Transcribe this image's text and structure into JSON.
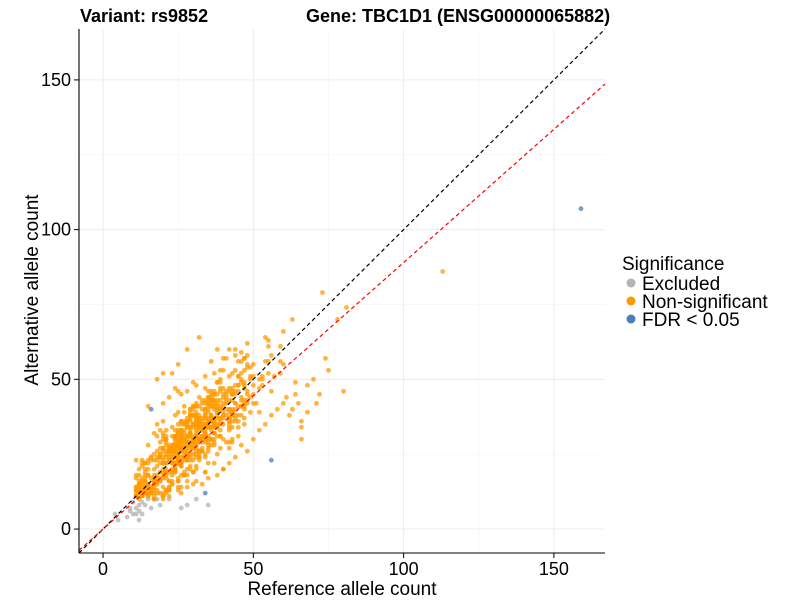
{
  "titles": {
    "variant": "Variant: rs9852",
    "gene": "Gene: TBC1D1 (ENSG00000065882)"
  },
  "legend": {
    "title": "Significance",
    "items": [
      {
        "label": "Excluded",
        "color": "#b3b3b3"
      },
      {
        "label": "Non-significant",
        "color": "#ff9900"
      },
      {
        "label": "FDR < 0.05",
        "color": "#4a7fb5"
      }
    ]
  },
  "colors": {
    "excluded": "#b3b3b3",
    "non_significant": "#ff9900",
    "significant": "#4a7fb5",
    "identity_line": "#000000",
    "fit_line": "#ff0000"
  },
  "chart_data": {
    "type": "scatter",
    "xlabel": "Reference allele count",
    "ylabel": "Alternative allele count",
    "xlim": [
      -8,
      167
    ],
    "ylim": [
      -8,
      167
    ],
    "x_ticks": [
      0,
      50,
      100,
      150
    ],
    "y_ticks": [
      0,
      50,
      100,
      150
    ],
    "grid": true,
    "legend_position": "right",
    "reference_lines": [
      {
        "name": "identity",
        "slope": 1.0,
        "intercept": 0,
        "color": "#000000",
        "dash": true
      },
      {
        "name": "fit",
        "slope": 0.89,
        "intercept": 0,
        "color": "#ff0000",
        "dash": true
      }
    ],
    "series": [
      {
        "name": "Excluded",
        "color": "#b3b3b3",
        "points": [
          [
            4,
            5
          ],
          [
            5,
            3
          ],
          [
            8,
            4
          ],
          [
            9,
            6
          ],
          [
            10,
            5
          ],
          [
            11,
            7
          ],
          [
            11,
            5
          ],
          [
            12,
            6
          ],
          [
            12,
            8
          ],
          [
            13,
            5
          ],
          [
            12,
            3
          ],
          [
            13,
            9
          ],
          [
            14,
            8
          ],
          [
            15,
            10
          ],
          [
            16,
            7
          ],
          [
            17,
            10
          ],
          [
            18,
            10
          ],
          [
            19,
            8
          ],
          [
            22,
            10
          ],
          [
            26,
            7
          ],
          [
            28,
            8
          ],
          [
            31,
            10
          ],
          [
            35,
            8
          ],
          [
            10,
            9
          ],
          [
            9,
            7
          ]
        ]
      },
      {
        "name": "FDR < 0.05",
        "color": "#4a7fb5",
        "points": [
          [
            16,
            40
          ],
          [
            34,
            12
          ],
          [
            56,
            23
          ],
          [
            159,
            107
          ]
        ]
      },
      {
        "name": "Non-significant",
        "color": "#ff9900",
        "cluster": {
          "n": 720,
          "x_mean": 30,
          "x_sd": 10,
          "y_slope": 0.95,
          "y_intercept": 2,
          "y_sd": 6.5,
          "seed": 9852
        },
        "points": [
          [
            113,
            86
          ],
          [
            73,
            79
          ],
          [
            63,
            70
          ],
          [
            60,
            66
          ],
          [
            59,
            61
          ],
          [
            60,
            55
          ],
          [
            56,
            58
          ],
          [
            55,
            52
          ],
          [
            53,
            50
          ],
          [
            53,
            48
          ],
          [
            59,
            56
          ],
          [
            57,
            51
          ],
          [
            61,
            44
          ],
          [
            62,
            38
          ],
          [
            63,
            40
          ],
          [
            66,
            36
          ],
          [
            66,
            34
          ],
          [
            66,
            30
          ],
          [
            70,
            50
          ],
          [
            75,
            53
          ],
          [
            72,
            45
          ],
          [
            71,
            42
          ],
          [
            68,
            48
          ],
          [
            80,
            46
          ],
          [
            81,
            74
          ],
          [
            78,
            70
          ],
          [
            74,
            57
          ],
          [
            64,
            49
          ],
          [
            64,
            45
          ],
          [
            65,
            42
          ],
          [
            68,
            39
          ],
          [
            18,
            50
          ],
          [
            20,
            52
          ],
          [
            25,
            55
          ],
          [
            28,
            60
          ],
          [
            32,
            64
          ],
          [
            38,
            60
          ],
          [
            42,
            60
          ],
          [
            44,
            58
          ],
          [
            40,
            57
          ],
          [
            36,
            56
          ],
          [
            30,
            49
          ],
          [
            25,
            46
          ],
          [
            22,
            44
          ],
          [
            15,
            41
          ],
          [
            20,
            42
          ],
          [
            28,
            46
          ],
          [
            24,
            47
          ],
          [
            23,
            52
          ],
          [
            34,
            51
          ],
          [
            39,
            53
          ],
          [
            46,
            56
          ],
          [
            48,
            54
          ],
          [
            50,
            55
          ],
          [
            52,
            47
          ],
          [
            45,
            31
          ],
          [
            46,
            28
          ],
          [
            50,
            30
          ],
          [
            52,
            33
          ],
          [
            54,
            35
          ],
          [
            56,
            38
          ],
          [
            58,
            40
          ],
          [
            60,
            42
          ],
          [
            48,
            26
          ],
          [
            44,
            24
          ],
          [
            42,
            22
          ],
          [
            40,
            20
          ],
          [
            38,
            18
          ],
          [
            35,
            17
          ],
          [
            33,
            15
          ],
          [
            30,
            15
          ],
          [
            28,
            14
          ],
          [
            25,
            13
          ],
          [
            22,
            14
          ],
          [
            20,
            12
          ],
          [
            14,
            14
          ],
          [
            12,
            13
          ],
          [
            13,
            16
          ],
          [
            15,
            18
          ],
          [
            17,
            16
          ],
          [
            18,
            21
          ],
          [
            16,
            24
          ],
          [
            14,
            22
          ],
          [
            12,
            18
          ],
          [
            11,
            12
          ],
          [
            28,
            35
          ],
          [
            30,
            38
          ],
          [
            34,
            40
          ],
          [
            36,
            42
          ]
        ]
      }
    ]
  }
}
